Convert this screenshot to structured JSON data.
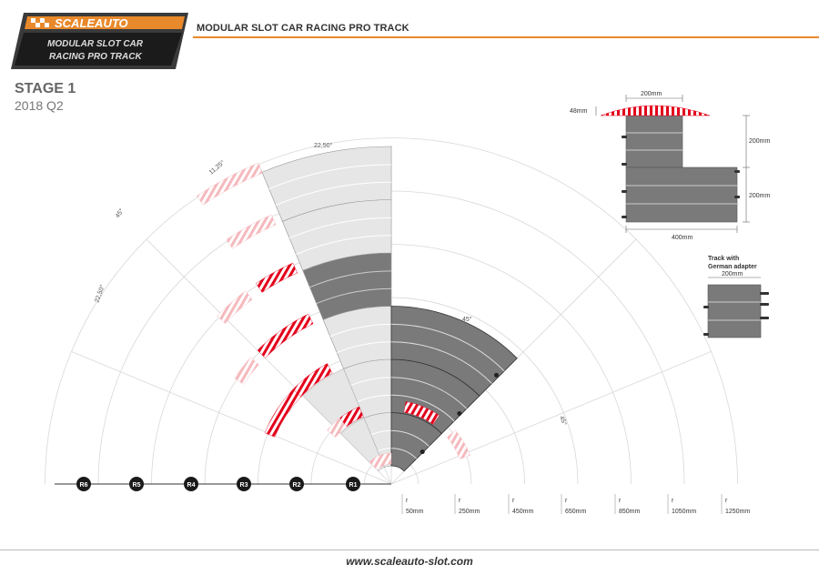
{
  "logo": {
    "brand": "SCALEAUTO",
    "line1": "MODULAR SLOT CAR",
    "line2": "RACING PRO TRACK"
  },
  "header": {
    "title": "MODULAR SLOT CAR RACING PRO TRACK"
  },
  "stage": {
    "title": "STAGE 1",
    "date": "2018 Q2"
  },
  "angles": {
    "a1": "22,50°",
    "a2": "11,25°",
    "a3": "45°",
    "a4": "22,50°",
    "a5": "45°",
    "a6": "45°"
  },
  "radii": [
    {
      "badge": "R6",
      "r": "r",
      "mm": "1250mm"
    },
    {
      "badge": "R5",
      "r": "r",
      "mm": "1050mm"
    },
    {
      "badge": "R4",
      "r": "r",
      "mm": "850mm"
    },
    {
      "badge": "R3",
      "r": "r",
      "mm": "650mm"
    },
    {
      "badge": "R2",
      "r": "r",
      "mm": "450mm"
    },
    {
      "badge": "R1",
      "r": "r",
      "mm": "250mm"
    },
    {
      "badge": "",
      "r": "r",
      "mm": "50mm"
    }
  ],
  "dims": {
    "border_w": "200mm",
    "border_h": "48mm",
    "side1": "200mm",
    "side2": "200mm",
    "bottom": "400mm",
    "adapter_title1": "Track with",
    "adapter_title2": "German adapter",
    "adapter_w": "200mm"
  },
  "footer": {
    "website": "www.scaleauto-slot.com"
  },
  "colors": {
    "accent": "#e8892b",
    "kerb_red": "#e3001b",
    "track": "#7a7a7a",
    "dark": "#1a1a1a"
  }
}
